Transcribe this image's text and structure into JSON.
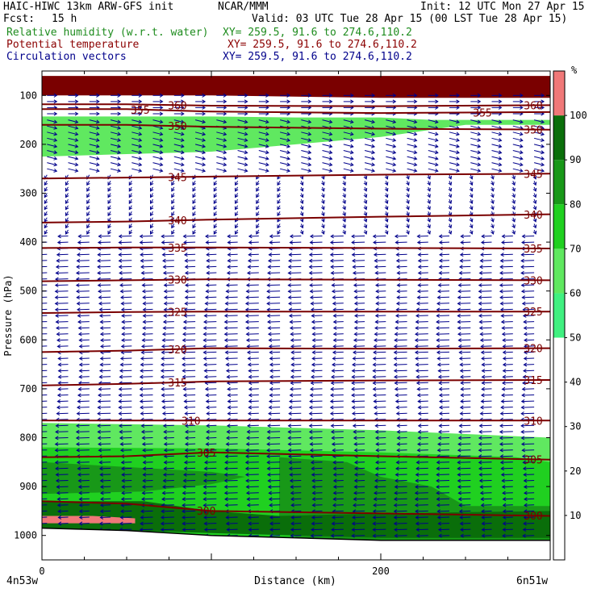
{
  "header": {
    "model": "HAIC-HIWC 13km ARW-GFS init",
    "org": "NCAR/MMM",
    "init": "Init: 12 UTC Mon 27 Apr 15",
    "fcst_label": "Fcst:",
    "fcst_value": "15 h",
    "valid": "Valid: 03 UTC Tue 28 Apr 15 (00 LST Tue 28 Apr 15)",
    "fields": [
      {
        "name": "Relative humidity (w.r.t. water)",
        "xy": "XY= 259.5, 91.6 to 274.6,110.2",
        "color": "#1e8c1e"
      },
      {
        "name": "Potential temperature",
        "xy": "XY= 259.5, 91.6 to 274.6,110.2",
        "color": "#8b0000"
      },
      {
        "name": "Circulation vectors",
        "xy": "XY= 259.5, 91.6 to 274.6,110.2",
        "color": "#00008b"
      }
    ]
  },
  "chart_data": {
    "type": "cross-section",
    "xlabel": "Distance (km)",
    "ylabel": "Pressure (hPa)",
    "xlim": [
      0,
      300
    ],
    "ylim": [
      1050,
      50
    ],
    "x_ticks": [
      "0",
      "200"
    ],
    "x_tick_values": [
      0,
      200
    ],
    "y_ticks": [
      "100",
      "200",
      "300",
      "400",
      "500",
      "600",
      "700",
      "800",
      "900",
      "1000"
    ],
    "y_tick_values": [
      100,
      200,
      300,
      400,
      500,
      600,
      700,
      800,
      900,
      1000
    ],
    "endpoint_left": "4n53w",
    "endpoint_right": "6n51w",
    "colorbar": {
      "unit": "%",
      "ticks": [
        "10",
        "20",
        "30",
        "40",
        "50",
        "60",
        "70",
        "80",
        "90",
        "100"
      ],
      "levels": [
        {
          "from": 0,
          "to": 50,
          "color": "#ffffff"
        },
        {
          "from": 50,
          "to": 60,
          "color": "#40f080"
        },
        {
          "from": 60,
          "to": 70,
          "color": "#60e860"
        },
        {
          "from": 70,
          "to": 80,
          "color": "#20d020"
        },
        {
          "from": 80,
          "to": 90,
          "color": "#189818"
        },
        {
          "from": 90,
          "to": 100,
          "color": "#0a6e0a"
        },
        {
          "from": 100,
          "to": 110,
          "color": "#f07878"
        }
      ]
    },
    "theta_contours": [
      {
        "label": "360",
        "p": [
          118,
          118,
          121,
          122,
          120
        ],
        "labels_at": [
          80,
          290
        ]
      },
      {
        "label": "355",
        "p": [
          128,
          128,
          133,
          136,
          134
        ],
        "labels_at": [
          58,
          260
        ]
      },
      {
        "label": "350",
        "p": [
          160,
          160,
          164,
          168,
          170
        ],
        "labels_at": [
          80,
          290
        ]
      },
      {
        "label": "345",
        "p": [
          270,
          268,
          266,
          262,
          260
        ],
        "labels_at": [
          80,
          290
        ]
      },
      {
        "label": "340",
        "p": [
          360,
          358,
          354,
          348,
          343
        ],
        "labels_at": [
          80,
          290
        ]
      },
      {
        "label": "335",
        "p": [
          412,
          411,
          411,
          412,
          413
        ],
        "labels_at": [
          80,
          290
        ]
      },
      {
        "label": "330",
        "p": [
          480,
          478,
          476,
          477,
          478
        ],
        "labels_at": [
          80,
          290
        ]
      },
      {
        "label": "325",
        "p": [
          545,
          543,
          542,
          542,
          542
        ],
        "labels_at": [
          80,
          290
        ]
      },
      {
        "label": "320",
        "p": [
          625,
          622,
          617,
          618,
          617
        ],
        "labels_at": [
          80,
          290
        ]
      },
      {
        "label": "315",
        "p": [
          693,
          690,
          685,
          683,
          682
        ],
        "labels_at": [
          80,
          290
        ]
      },
      {
        "label": "310",
        "p": [
          765,
          765,
          765,
          765,
          765
        ],
        "labels_at": [
          88,
          290
        ]
      },
      {
        "label": "305",
        "p": [
          840,
          838,
          830,
          838,
          845
        ],
        "labels_at": [
          97,
          290
        ]
      },
      {
        "label": "300",
        "p": [
          930,
          935,
          950,
          955,
          960
        ],
        "labels_at": [
          97,
          290
        ]
      }
    ],
    "contour_x": [
      0,
      50,
      100,
      200,
      300
    ],
    "terrain_p": [
      985,
      990,
      1000,
      1010,
      1010
    ],
    "rh_regions": [
      {
        "level": 60,
        "upper": [
          [
            0,
            143
          ],
          [
            50,
            143
          ],
          [
            100,
            143
          ],
          [
            150,
            145
          ],
          [
            200,
            145
          ],
          [
            230,
            150
          ],
          [
            300,
            150
          ]
        ],
        "lower": [
          [
            300,
            160
          ],
          [
            250,
            160
          ],
          [
            200,
            185
          ],
          [
            150,
            200
          ],
          [
            100,
            215
          ],
          [
            50,
            220
          ],
          [
            0,
            225
          ]
        ]
      },
      {
        "level": 60,
        "upper": [
          [
            0,
            770
          ],
          [
            100,
            775
          ],
          [
            200,
            785
          ],
          [
            300,
            800
          ]
        ],
        "lower": [
          [
            300,
            1010
          ],
          [
            200,
            1010
          ],
          [
            100,
            1000
          ],
          [
            0,
            985
          ]
        ]
      },
      {
        "level": 70,
        "upper": [
          [
            0,
            820
          ],
          [
            100,
            822
          ],
          [
            200,
            830
          ],
          [
            280,
            840
          ],
          [
            300,
            850
          ]
        ],
        "lower": [
          [
            300,
            1010
          ],
          [
            200,
            1010
          ],
          [
            100,
            1000
          ],
          [
            0,
            985
          ]
        ]
      },
      {
        "level": 80,
        "upper": [
          [
            0,
            850
          ],
          [
            50,
            860
          ],
          [
            100,
            870
          ],
          [
            120,
            880
          ],
          [
            100,
            895
          ],
          [
            60,
            910
          ],
          [
            0,
            915
          ]
        ],
        "lower": [
          [
            0,
            985
          ]
        ]
      },
      {
        "level": 80,
        "upper": [
          [
            140,
            840
          ],
          [
            180,
            850
          ],
          [
            200,
            880
          ],
          [
            230,
            900
          ],
          [
            250,
            940
          ],
          [
            300,
            940
          ]
        ],
        "lower": [
          [
            300,
            1010
          ],
          [
            200,
            1010
          ],
          [
            150,
            1005
          ],
          [
            140,
            960
          ]
        ]
      },
      {
        "level": 90,
        "upper": [
          [
            0,
            930
          ],
          [
            60,
            930
          ],
          [
            100,
            950
          ],
          [
            140,
            960
          ],
          [
            200,
            955
          ],
          [
            300,
            950
          ]
        ],
        "lower": [
          [
            300,
            1005
          ],
          [
            200,
            1005
          ],
          [
            100,
            995
          ],
          [
            0,
            985
          ]
        ]
      },
      {
        "level": 100,
        "upper": [
          [
            0,
            960
          ],
          [
            30,
            960
          ],
          [
            55,
            965
          ]
        ],
        "lower": [
          [
            55,
            975
          ],
          [
            30,
            975
          ],
          [
            0,
            975
          ]
        ]
      },
      {
        "level": 100,
        "upper": [
          [
            0,
            60
          ],
          [
            300,
            60
          ]
        ],
        "lower": [
          [
            300,
            105
          ],
          [
            200,
            105
          ],
          [
            100,
            100
          ],
          [
            0,
            100
          ]
        ]
      }
    ]
  }
}
